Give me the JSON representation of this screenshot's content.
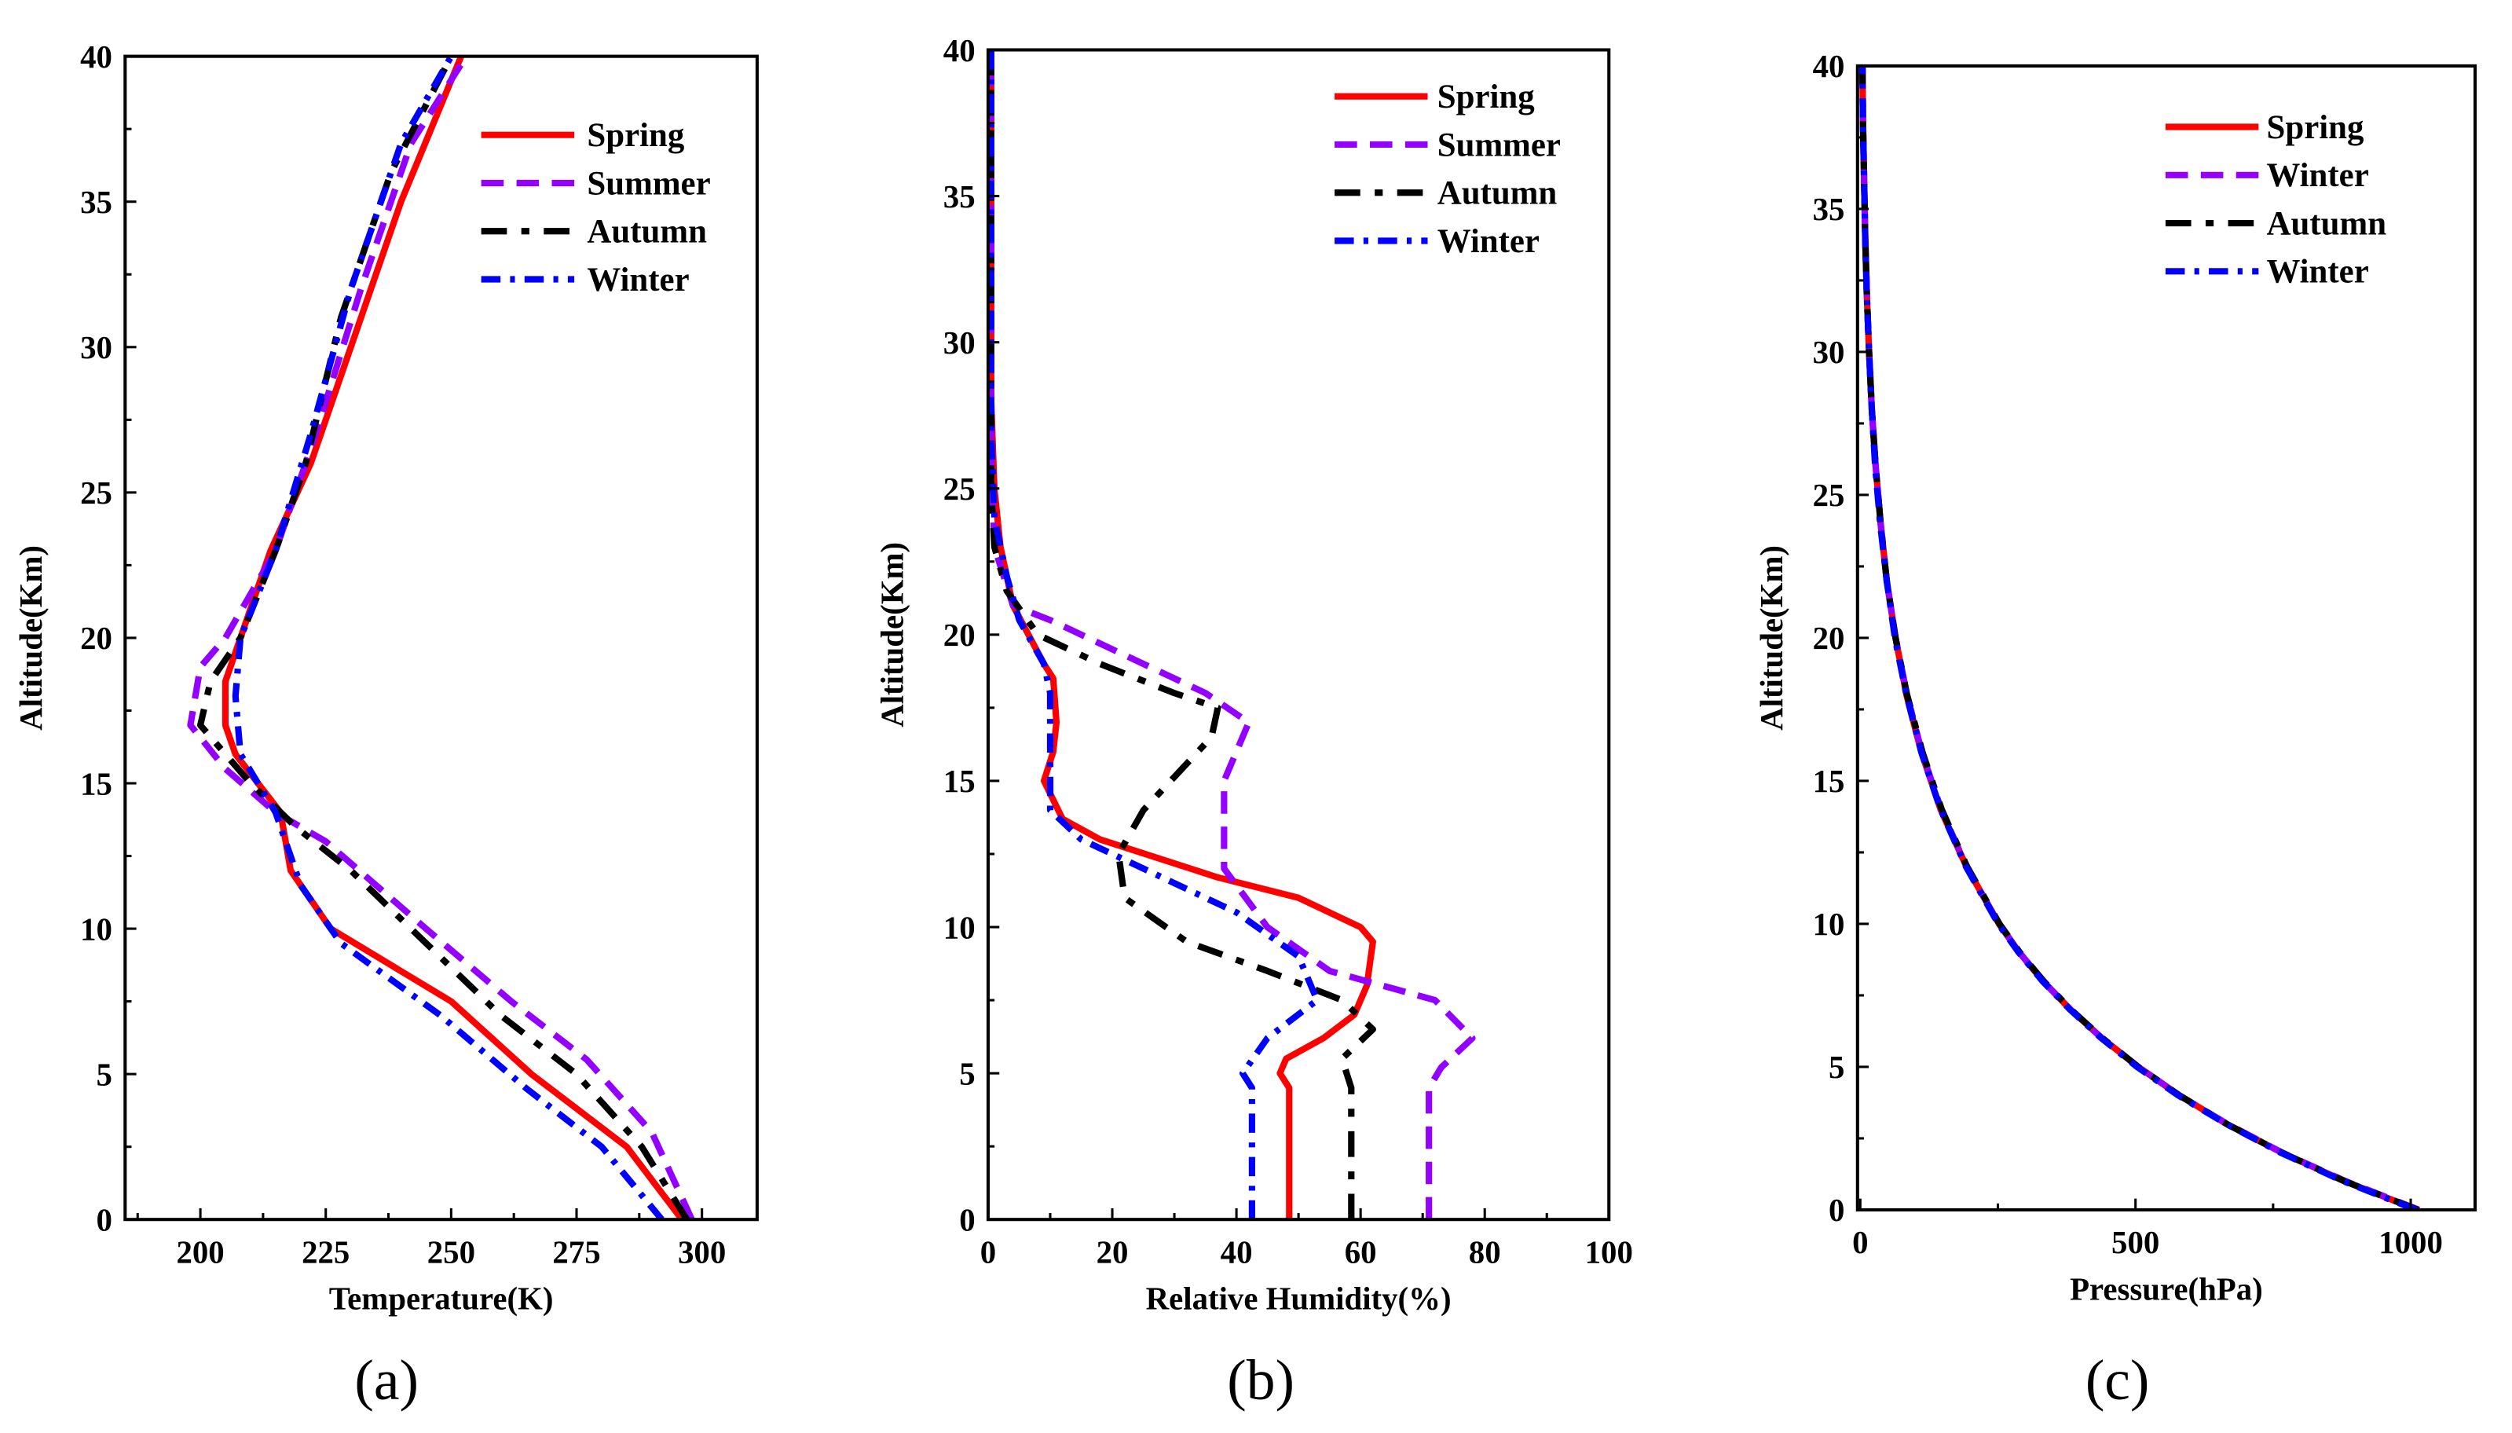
{
  "chart_data": [
    {
      "type": "line",
      "panel_label": "(a)",
      "xlabel": "Temperature(K)",
      "ylabel": "Altitude(Km)",
      "xlim": [
        185,
        311
      ],
      "ylim": [
        0,
        40
      ],
      "xticks": [
        200,
        225,
        250,
        275,
        300
      ],
      "yticks": [
        0,
        5,
        10,
        15,
        20,
        25,
        30,
        35,
        40
      ],
      "legend_position": "top-right",
      "series": [
        {
          "name": "Spring",
          "color": "#ff0000",
          "style": "solid",
          "points": [
            [
              296,
              0
            ],
            [
              285,
              2.5
            ],
            [
              266,
              5
            ],
            [
              250,
              7.5
            ],
            [
              226,
              10
            ],
            [
              218,
              12
            ],
            [
              216,
              14
            ],
            [
              207,
              16
            ],
            [
              205,
              17
            ],
            [
              205,
              18.5
            ],
            [
              208,
              20
            ],
            [
              214,
              23
            ],
            [
              222,
              26
            ],
            [
              230,
              30
            ],
            [
              240,
              35
            ],
            [
              252,
              40
            ]
          ]
        },
        {
          "name": "Summer",
          "color": "#9400ff",
          "style": "dash",
          "points": [
            [
              298,
              0
            ],
            [
              290,
              3
            ],
            [
              277,
              5.5
            ],
            [
              262,
              7.5
            ],
            [
              245,
              10
            ],
            [
              225,
              13
            ],
            [
              215,
              14
            ],
            [
              205,
              15.5
            ],
            [
              198,
              17
            ],
            [
              200,
              19
            ],
            [
              205,
              20
            ],
            [
              215,
              23
            ],
            [
              223,
              27
            ],
            [
              232,
              32
            ],
            [
              242,
              37
            ],
            [
              253,
              40
            ]
          ]
        },
        {
          "name": "Autumn",
          "color": "#000000",
          "style": "dash-dot",
          "points": [
            [
              297,
              0
            ],
            [
              288,
              2.5
            ],
            [
              275,
              5
            ],
            [
              260,
              7
            ],
            [
              245,
              9.5
            ],
            [
              230,
              12
            ],
            [
              219,
              13.5
            ],
            [
              210,
              15
            ],
            [
              200,
              17
            ],
            [
              202,
              18.5
            ],
            [
              208,
              20
            ],
            [
              215,
              23
            ],
            [
              221,
              26
            ],
            [
              228,
              31
            ],
            [
              238,
              36
            ],
            [
              250,
              40
            ]
          ]
        },
        {
          "name": "Winter",
          "color": "#0000ff",
          "style": "dash-dot-short",
          "points": [
            [
              292,
              0
            ],
            [
              280,
              2.5
            ],
            [
              265,
              4.5
            ],
            [
              248,
              7
            ],
            [
              228,
              9.5
            ],
            [
              220,
              11.5
            ],
            [
              215,
              14
            ],
            [
              208,
              16
            ],
            [
              207,
              18
            ],
            [
              208,
              20
            ],
            [
              215,
              23
            ],
            [
              222,
              27
            ],
            [
              230,
              32
            ],
            [
              240,
              37
            ],
            [
              250,
              40
            ]
          ]
        }
      ]
    },
    {
      "type": "line",
      "panel_label": "(b)",
      "xlabel": "Relative Humidity(%)",
      "ylabel": "Altitude(Km)",
      "xlim": [
        0,
        100
      ],
      "ylim": [
        0,
        40
      ],
      "xticks": [
        0,
        20,
        40,
        60,
        80,
        100
      ],
      "yticks": [
        0,
        5,
        10,
        15,
        20,
        25,
        30,
        35,
        40
      ],
      "legend_position": "top-right",
      "series": [
        {
          "name": "Spring",
          "color": "#ff0000",
          "style": "solid",
          "points": [
            [
              48.5,
              0
            ],
            [
              48.5,
              4.5
            ],
            [
              47,
              5
            ],
            [
              48,
              5.5
            ],
            [
              54,
              6.2
            ],
            [
              59,
              7
            ],
            [
              61,
              8
            ],
            [
              62,
              9.5
            ],
            [
              60,
              10
            ],
            [
              50,
              11
            ],
            [
              37,
              11.7
            ],
            [
              18,
              13
            ],
            [
              12,
              13.7
            ],
            [
              9,
              15
            ],
            [
              10.5,
              16
            ],
            [
              11,
              17
            ],
            [
              10.5,
              18.5
            ],
            [
              9,
              19
            ],
            [
              4,
              21
            ],
            [
              2,
              23
            ],
            [
              1,
              25
            ],
            [
              0.5,
              28
            ],
            [
              0.5,
              40
            ]
          ]
        },
        {
          "name": "Summer",
          "color": "#9400ff",
          "style": "dash",
          "points": [
            [
              71,
              0
            ],
            [
              71,
              4.5
            ],
            [
              73,
              5.2
            ],
            [
              78,
              6.2
            ],
            [
              72,
              7.5
            ],
            [
              55,
              8.5
            ],
            [
              45,
              10
            ],
            [
              38,
              12
            ],
            [
              38,
              15
            ],
            [
              40,
              16
            ],
            [
              42,
              17
            ],
            [
              35,
              18
            ],
            [
              20,
              19.5
            ],
            [
              10,
              20.5
            ],
            [
              4,
              21
            ],
            [
              1,
              23
            ],
            [
              0.5,
              26
            ],
            [
              0.5,
              40
            ]
          ]
        },
        {
          "name": "Autumn",
          "color": "#000000",
          "style": "dash-dot",
          "points": [
            [
              58.5,
              0
            ],
            [
              58.5,
              4.5
            ],
            [
              57,
              5.5
            ],
            [
              62,
              6.5
            ],
            [
              57,
              7.5
            ],
            [
              45,
              8.5
            ],
            [
              32,
              9.5
            ],
            [
              22,
              11
            ],
            [
              21,
              12.5
            ],
            [
              25,
              14
            ],
            [
              36,
              16.5
            ],
            [
              37,
              17.5
            ],
            [
              30,
              18
            ],
            [
              18,
              19
            ],
            [
              8,
              20
            ],
            [
              3,
              21.5
            ],
            [
              1,
              23
            ],
            [
              0.5,
              25
            ],
            [
              0.5,
              40
            ]
          ]
        },
        {
          "name": "Winter",
          "color": "#0000ff",
          "style": "dash-dot-short",
          "points": [
            [
              42.5,
              0
            ],
            [
              42.5,
              4.5
            ],
            [
              41,
              5
            ],
            [
              45,
              6.2
            ],
            [
              53,
              7.5
            ],
            [
              50,
              9
            ],
            [
              40,
              10.5
            ],
            [
              25,
              12
            ],
            [
              15,
              13
            ],
            [
              10,
              14
            ],
            [
              10,
              15
            ],
            [
              10,
              16
            ],
            [
              10,
              18
            ],
            [
              9,
              19
            ],
            [
              5,
              20.5
            ],
            [
              3,
              22
            ],
            [
              1,
              24
            ],
            [
              0.5,
              27
            ],
            [
              0.5,
              40
            ]
          ]
        }
      ]
    },
    {
      "type": "line",
      "panel_label": "(c)",
      "xlabel": "Pressure(hPa)",
      "ylabel": "Altitude(Km)",
      "xlim": [
        -5,
        1117
      ],
      "ylim": [
        0,
        40
      ],
      "xticks": [
        0,
        500,
        1000
      ],
      "yticks": [
        0,
        5,
        10,
        15,
        20,
        25,
        30,
        35,
        40
      ],
      "legend_position": "top-right",
      "series": [
        {
          "name": "Spring",
          "color": "#ff0000",
          "style": "solid",
          "points": [
            [
              1013,
              0
            ],
            [
              880,
              1
            ],
            [
              766,
              2
            ],
            [
              666,
              3
            ],
            [
              580,
              4
            ],
            [
              505,
              5
            ],
            [
              439,
              6
            ],
            [
              382,
              7
            ],
            [
              332,
              8
            ],
            [
              289,
              9
            ],
            [
              252,
              10
            ],
            [
              193,
              12
            ],
            [
              146,
              14
            ],
            [
              111,
              16
            ],
            [
              84,
              18
            ],
            [
              64,
              20
            ],
            [
              48,
              22
            ],
            [
              37,
              24
            ],
            [
              28,
              26
            ],
            [
              21,
              28
            ],
            [
              16,
              30
            ],
            [
              12,
              32
            ],
            [
              9,
              34
            ],
            [
              7,
              36
            ],
            [
              5,
              38
            ],
            [
              4,
              40
            ]
          ]
        },
        {
          "name": "Winter",
          "color": "#9400ff",
          "style": "dash",
          "points": [
            [
              1015,
              0
            ],
            [
              882,
              1
            ],
            [
              767,
              2
            ],
            [
              667,
              3
            ],
            [
              580,
              4
            ],
            [
              505,
              5
            ],
            [
              439,
              6
            ],
            [
              382,
              7
            ],
            [
              332,
              8
            ],
            [
              289,
              9
            ],
            [
              252,
              10
            ],
            [
              193,
              12
            ],
            [
              147,
              14
            ],
            [
              112,
              16
            ],
            [
              85,
              18
            ],
            [
              64,
              20
            ],
            [
              48,
              22
            ],
            [
              37,
              24
            ],
            [
              28,
              26
            ],
            [
              21,
              28
            ],
            [
              16,
              30
            ],
            [
              12,
              32
            ],
            [
              9,
              34
            ],
            [
              7,
              36
            ],
            [
              5,
              38
            ],
            [
              4,
              40
            ]
          ]
        },
        {
          "name": "Autumn",
          "color": "#000000",
          "style": "dash-dot",
          "points": [
            [
              1013,
              0
            ],
            [
              880,
              1
            ],
            [
              766,
              2
            ],
            [
              666,
              3
            ],
            [
              580,
              4
            ],
            [
              505,
              5
            ],
            [
              440,
              6
            ],
            [
              383,
              7
            ],
            [
              333,
              8
            ],
            [
              290,
              9
            ],
            [
              253,
              10
            ],
            [
              194,
              12
            ],
            [
              148,
              14
            ],
            [
              113,
              16
            ],
            [
              85,
              18
            ],
            [
              64,
              20
            ],
            [
              48,
              22
            ],
            [
              37,
              24
            ],
            [
              28,
              26
            ],
            [
              21,
              28
            ],
            [
              16,
              30
            ],
            [
              12,
              32
            ],
            [
              9,
              34
            ],
            [
              7,
              36
            ],
            [
              5,
              38
            ],
            [
              4,
              40
            ]
          ]
        },
        {
          "name": "Winter",
          "color": "#0000ff",
          "style": "dash-dot-short",
          "points": [
            [
              1010,
              0
            ],
            [
              878,
              1
            ],
            [
              764,
              2
            ],
            [
              665,
              3
            ],
            [
              578,
              4
            ],
            [
              503,
              5
            ],
            [
              438,
              6
            ],
            [
              381,
              7
            ],
            [
              331,
              8
            ],
            [
              288,
              9
            ],
            [
              251,
              10
            ],
            [
              192,
              12
            ],
            [
              146,
              14
            ],
            [
              111,
              16
            ],
            [
              84,
              18
            ],
            [
              63,
              20
            ],
            [
              48,
              22
            ],
            [
              36,
              24
            ],
            [
              27,
              26
            ],
            [
              21,
              28
            ],
            [
              16,
              30
            ],
            [
              12,
              32
            ],
            [
              9,
              34
            ],
            [
              7,
              36
            ],
            [
              5,
              38
            ],
            [
              4,
              40
            ]
          ]
        }
      ]
    }
  ]
}
